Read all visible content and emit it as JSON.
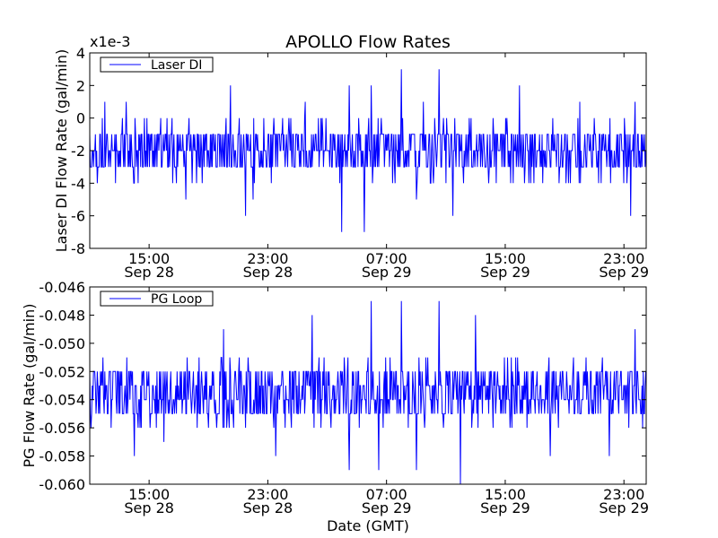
{
  "figure": {
    "title": "APOLLO Flow Rates",
    "xlabel": "Date (GMT)"
  },
  "chart_data": [
    {
      "type": "line",
      "title": "APOLLO Flow Rates",
      "ylabel": "Laser DI Flow Rate (gal/min)",
      "xlabel": "",
      "y_multiplier_label": "x1e-3",
      "ylim": [
        -8,
        4
      ],
      "yticks": [
        "-8",
        "-6",
        "-4",
        "-2",
        "0",
        "2",
        "4"
      ],
      "xlim": [
        "2014-09-28 11:00",
        "2014-09-30 00:30"
      ],
      "xticks": [
        {
          "x": "2014-09-28 15:00",
          "time": "15:00",
          "date": "Sep 28"
        },
        {
          "x": "2014-09-28 23:00",
          "time": "23:00",
          "date": "Sep 28"
        },
        {
          "x": "2014-09-29 07:00",
          "time": "07:00",
          "date": "Sep 29"
        },
        {
          "x": "2014-09-29 15:00",
          "time": "15:00",
          "date": "Sep 29"
        },
        {
          "x": "2014-09-29 23:00",
          "time": "23:00",
          "date": "Sep 29"
        }
      ],
      "legend": "top-left",
      "grid": false,
      "series": [
        {
          "name": "Laser DI",
          "color": "#0000ff",
          "baseline_range": [
            -3,
            -1
          ],
          "x": [
            "2014-09-28 12:00",
            "2014-09-28 13:30",
            "2014-09-28 17:30",
            "2014-09-28 20:30",
            "2014-09-28 21:30",
            "2014-09-28 22:00",
            "2014-09-29 01:30",
            "2014-09-29 04:00",
            "2014-09-29 04:30",
            "2014-09-29 05:30",
            "2014-09-29 06:00",
            "2014-09-29 08:00",
            "2014-09-29 09:00",
            "2014-09-29 09:30",
            "2014-09-29 10:30",
            "2014-09-29 11:30",
            "2014-09-29 16:00",
            "2014-09-29 20:00",
            "2014-09-29 23:30",
            "2014-09-29 23:45"
          ],
          "values": [
            1,
            1,
            -5,
            2,
            -6,
            -5,
            1,
            -7,
            2,
            -7,
            2,
            3,
            -5,
            1,
            3,
            -6,
            2,
            1,
            -6,
            1
          ]
        }
      ]
    },
    {
      "type": "line",
      "title": "",
      "ylabel": "PG Flow Rate (gal/min)",
      "xlabel": "Date (GMT)",
      "ylim": [
        -0.06,
        -0.046
      ],
      "yticks": [
        "-0.060",
        "-0.058",
        "-0.056",
        "-0.054",
        "-0.052",
        "-0.050",
        "-0.048",
        "-0.046"
      ],
      "xlim": [
        "2014-09-28 11:00",
        "2014-09-30 00:30"
      ],
      "xticks": [
        {
          "x": "2014-09-28 15:00",
          "time": "15:00",
          "date": "Sep 28"
        },
        {
          "x": "2014-09-28 23:00",
          "time": "23:00",
          "date": "Sep 28"
        },
        {
          "x": "2014-09-29 07:00",
          "time": "07:00",
          "date": "Sep 29"
        },
        {
          "x": "2014-09-29 15:00",
          "time": "15:00",
          "date": "Sep 29"
        },
        {
          "x": "2014-09-29 23:00",
          "time": "23:00",
          "date": "Sep 29"
        }
      ],
      "legend": "top-left",
      "grid": false,
      "series": [
        {
          "name": "PG Loop",
          "color": "#0000ff",
          "baseline_range": [
            -0.055,
            -0.052
          ],
          "x": [
            "2014-09-28 14:00",
            "2014-09-28 16:00",
            "2014-09-28 20:00",
            "2014-09-28 23:30",
            "2014-09-29 02:00",
            "2014-09-29 04:30",
            "2014-09-29 06:00",
            "2014-09-29 06:30",
            "2014-09-29 08:00",
            "2014-09-29 09:00",
            "2014-09-29 10:30",
            "2014-09-29 12:00",
            "2014-09-29 13:00",
            "2014-09-29 18:00",
            "2014-09-29 22:00",
            "2014-09-29 23:45"
          ],
          "values": [
            -0.058,
            -0.057,
            -0.049,
            -0.058,
            -0.048,
            -0.059,
            -0.047,
            -0.059,
            -0.047,
            -0.059,
            -0.047,
            -0.06,
            -0.048,
            -0.058,
            -0.058,
            -0.049
          ]
        }
      ]
    }
  ]
}
